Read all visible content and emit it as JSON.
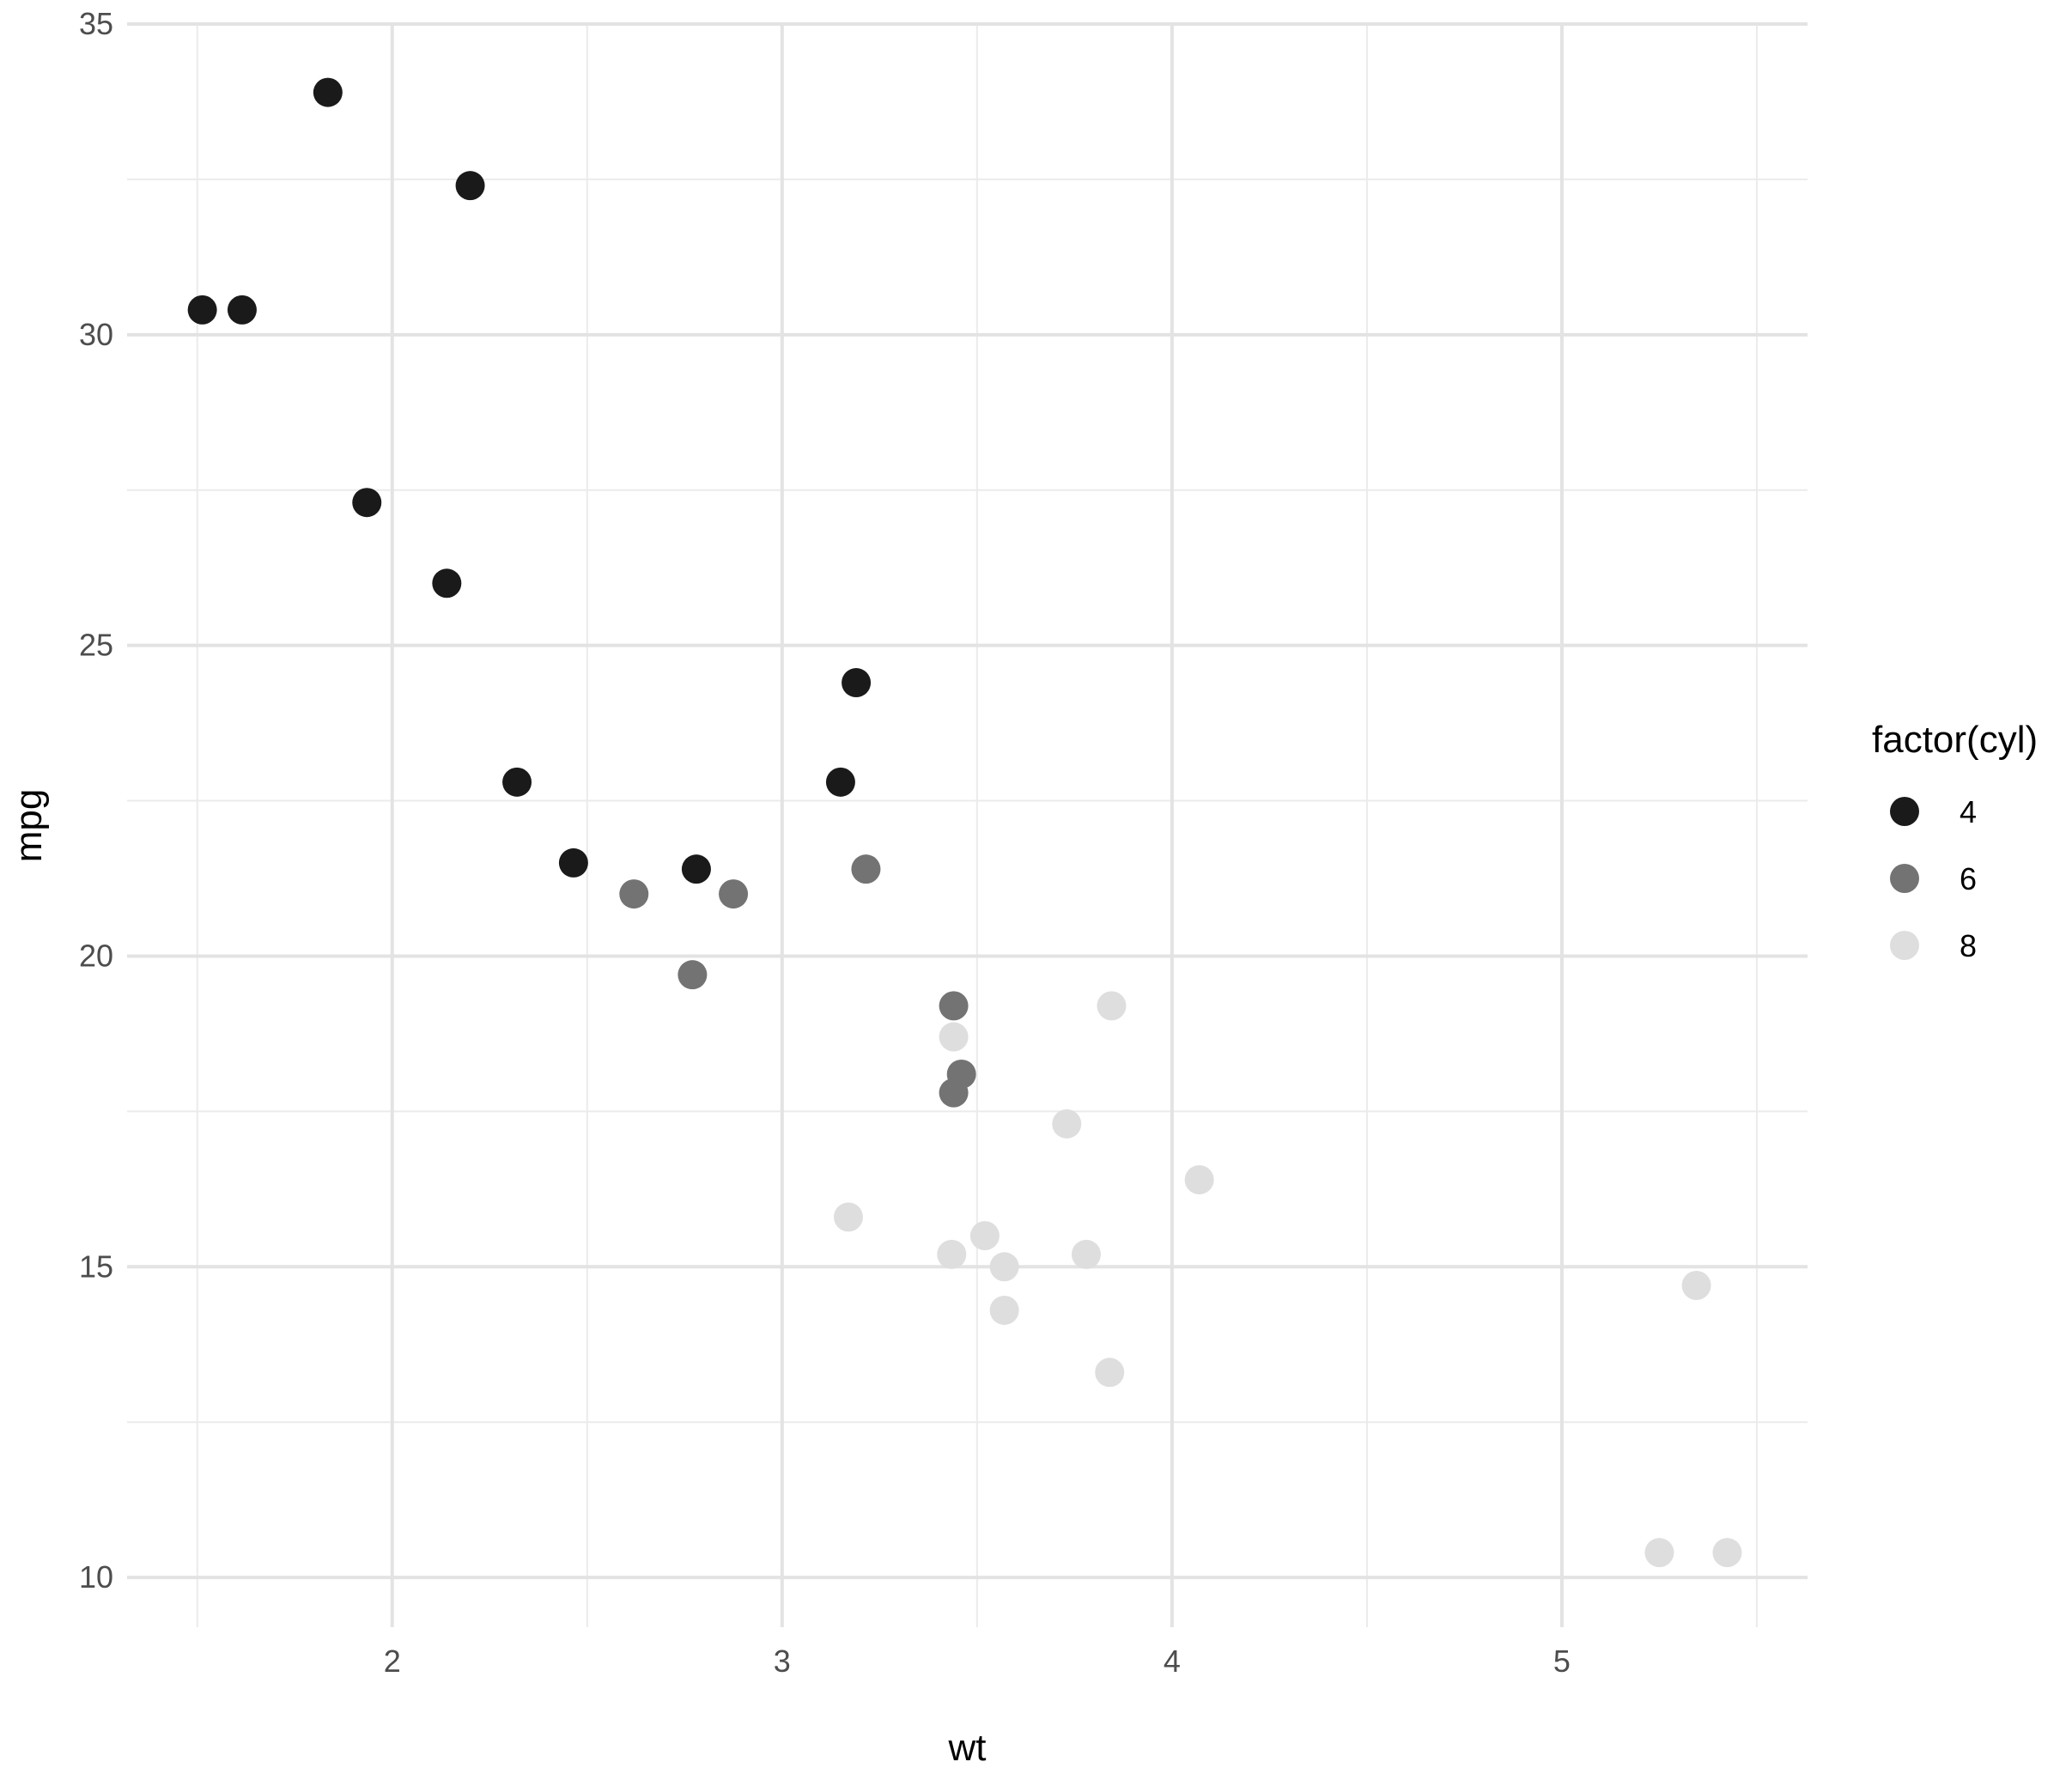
{
  "chart_data": {
    "type": "scatter",
    "xlabel": "wt",
    "ylabel": "mpg",
    "xlim": [
      1.32,
      5.63
    ],
    "ylim": [
      9.2,
      35.0
    ],
    "x_ticks": [
      2,
      3,
      4,
      5
    ],
    "y_ticks": [
      10,
      15,
      20,
      25,
      30,
      35
    ],
    "x_minor_ticks": [
      1.5,
      2.5,
      3.5,
      4.5,
      5.5
    ],
    "y_minor_ticks": [
      12.5,
      17.5,
      22.5,
      27.5,
      32.5
    ],
    "grid": true,
    "legend": {
      "title": "factor(cyl)",
      "position": "right"
    },
    "series": [
      {
        "name": "4",
        "color": "#1a1a1a",
        "points": [
          {
            "x": 2.32,
            "y": 22.8
          },
          {
            "x": 3.19,
            "y": 24.4
          },
          {
            "x": 3.15,
            "y": 22.8
          },
          {
            "x": 2.2,
            "y": 32.4
          },
          {
            "x": 1.615,
            "y": 30.4
          },
          {
            "x": 1.835,
            "y": 33.9
          },
          {
            "x": 2.465,
            "y": 21.5
          },
          {
            "x": 1.935,
            "y": 27.3
          },
          {
            "x": 2.14,
            "y": 26.0
          },
          {
            "x": 1.513,
            "y": 30.4
          },
          {
            "x": 2.78,
            "y": 21.4
          }
        ]
      },
      {
        "name": "6",
        "color": "#737373",
        "points": [
          {
            "x": 2.62,
            "y": 21.0
          },
          {
            "x": 2.875,
            "y": 21.0
          },
          {
            "x": 3.215,
            "y": 21.4
          },
          {
            "x": 3.46,
            "y": 18.1
          },
          {
            "x": 3.44,
            "y": 19.2
          },
          {
            "x": 3.44,
            "y": 17.8
          },
          {
            "x": 2.77,
            "y": 19.7
          }
        ]
      },
      {
        "name": "8",
        "color": "#dedede",
        "points": [
          {
            "x": 3.44,
            "y": 18.7
          },
          {
            "x": 3.57,
            "y": 14.3
          },
          {
            "x": 4.07,
            "y": 16.4
          },
          {
            "x": 3.73,
            "y": 17.3
          },
          {
            "x": 3.78,
            "y": 15.2
          },
          {
            "x": 5.25,
            "y": 10.4
          },
          {
            "x": 5.424,
            "y": 10.4
          },
          {
            "x": 5.345,
            "y": 14.7
          },
          {
            "x": 3.52,
            "y": 15.5
          },
          {
            "x": 3.435,
            "y": 15.2
          },
          {
            "x": 3.84,
            "y": 13.3
          },
          {
            "x": 3.845,
            "y": 19.2
          },
          {
            "x": 3.17,
            "y": 15.8
          },
          {
            "x": 3.57,
            "y": 15.0
          }
        ]
      }
    ]
  }
}
